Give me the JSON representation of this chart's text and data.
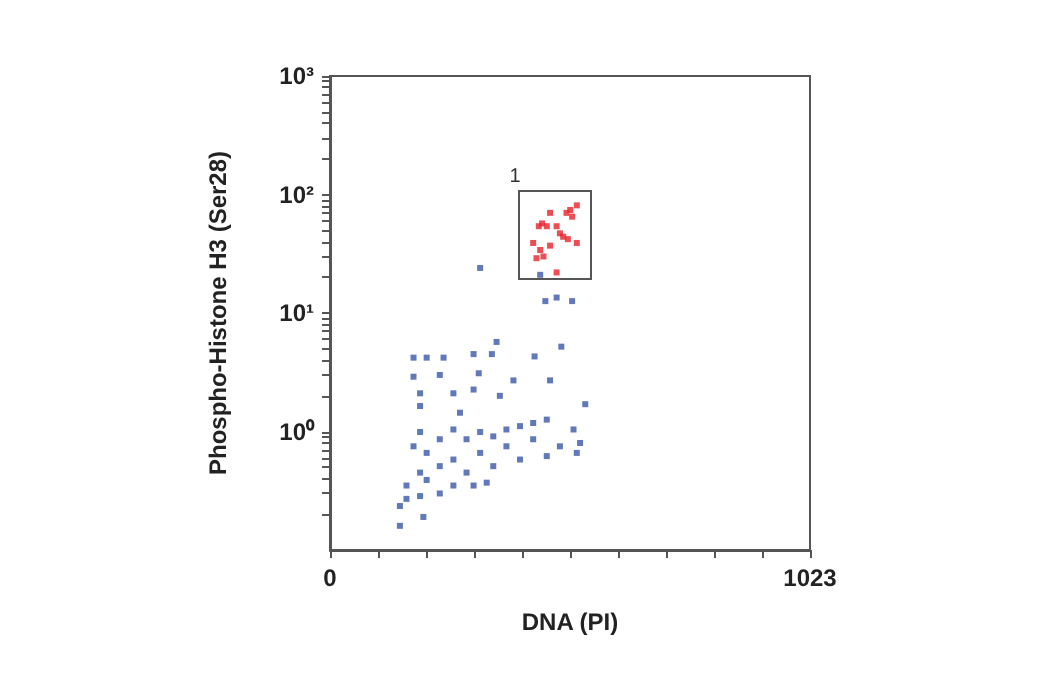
{
  "chart_data": {
    "type": "scatter",
    "xlabel": "DNA (PI)",
    "ylabel": "Phospho-Histone H3 (Ser28)",
    "xlim": [
      0,
      1023
    ],
    "xticks": [
      0,
      {
        "value": 102.3,
        "label": null
      },
      {
        "value": 204.6,
        "label": null
      },
      {
        "value": 306.9,
        "label": null
      },
      {
        "value": 409.2,
        "label": null
      },
      {
        "value": 511.5,
        "label": null
      },
      {
        "value": 613.8,
        "label": null
      },
      {
        "value": 716.1,
        "label": null
      },
      {
        "value": 818.4,
        "label": null
      },
      {
        "value": 920.7,
        "label": null
      },
      1023
    ],
    "ylim": [
      0.1,
      1000
    ],
    "log": "y",
    "yticks": [
      {
        "value": 0.2,
        "label": null
      },
      {
        "value": 0.3,
        "label": null
      },
      {
        "value": 0.4,
        "label": null
      },
      {
        "value": 0.5,
        "label": null
      },
      {
        "value": 0.6,
        "label": null
      },
      {
        "value": 0.7,
        "label": null
      },
      {
        "value": 0.8,
        "label": null
      },
      {
        "value": 0.9,
        "label": null
      },
      {
        "value": 1,
        "label": "10⁰"
      },
      {
        "value": 2,
        "label": null
      },
      {
        "value": 3,
        "label": null
      },
      {
        "value": 4,
        "label": null
      },
      {
        "value": 5,
        "label": null
      },
      {
        "value": 6,
        "label": null
      },
      {
        "value": 7,
        "label": null
      },
      {
        "value": 8,
        "label": null
      },
      {
        "value": 9,
        "label": null
      },
      {
        "value": 10,
        "label": "10¹"
      },
      {
        "value": 20,
        "label": null
      },
      {
        "value": 30,
        "label": null
      },
      {
        "value": 40,
        "label": null
      },
      {
        "value": 50,
        "label": null
      },
      {
        "value": 60,
        "label": null
      },
      {
        "value": 70,
        "label": null
      },
      {
        "value": 80,
        "label": null
      },
      {
        "value": 90,
        "label": null
      },
      {
        "value": 100,
        "label": "10²"
      },
      {
        "value": 200,
        "label": null
      },
      {
        "value": 300,
        "label": null
      },
      {
        "value": 400,
        "label": null
      },
      {
        "value": 500,
        "label": null
      },
      {
        "value": 600,
        "label": null
      },
      {
        "value": 700,
        "label": null
      },
      {
        "value": 800,
        "label": null
      },
      {
        "value": 900,
        "label": null
      },
      {
        "value": 1000,
        "label": "10³"
      }
    ],
    "grid": false,
    "marker": "square",
    "annotations": [
      "1"
    ],
    "series": [
      {
        "color": "#3a57a6",
        "x": [
          320,
          448,
          459,
          483,
          516,
          493,
          355,
          178,
          206,
          242,
          306,
          345,
          436,
          178,
          234,
          317,
          391,
          469,
          192,
          263,
          362,
          544,
          149,
          163,
          192,
          206,
          192,
          178,
          234,
          263,
          291,
          320,
          348,
          376,
          405,
          433,
          462,
          519,
          533,
          526,
          490,
          462,
          405,
          348,
          291,
          263,
          234,
          192,
          206,
          263,
          320,
          376,
          433,
          234,
          163,
          306,
          334,
          149,
          199,
          192,
          277,
          306
        ],
        "values": [
          24,
          21,
          12.6,
          13.5,
          12.6,
          5.2,
          5.7,
          4.2,
          4.2,
          4.2,
          4.5,
          4.5,
          4.3,
          2.9,
          3.0,
          3.1,
          2.7,
          2.7,
          2.1,
          2.1,
          2.0,
          1.7,
          0.235,
          0.35,
          0.45,
          0.66,
          0.99,
          0.75,
          0.86,
          1.04,
          0.86,
          0.99,
          0.91,
          1.04,
          1.11,
          1.18,
          1.26,
          1.04,
          0.8,
          0.66,
          0.75,
          0.62,
          0.58,
          0.51,
          0.45,
          0.35,
          0.3,
          0.285,
          0.39,
          0.58,
          0.66,
          0.75,
          0.86,
          0.51,
          0.27,
          0.35,
          0.37,
          0.16,
          0.19,
          1.64,
          1.44,
          2.26
        ]
      },
      {
        "color": "#e8202a",
        "x": [
          526,
          512,
          504,
          516,
          469,
          452,
          445,
          462,
          483,
          490,
          497,
          507,
          526,
          433,
          448,
          469,
          440,
          455,
          483
        ],
        "values": [
          81,
          74,
          70,
          65,
          70,
          57,
          54,
          54,
          54,
          47,
          44,
          42,
          39,
          39,
          34,
          37,
          29,
          30,
          22
        ]
      }
    ]
  }
}
